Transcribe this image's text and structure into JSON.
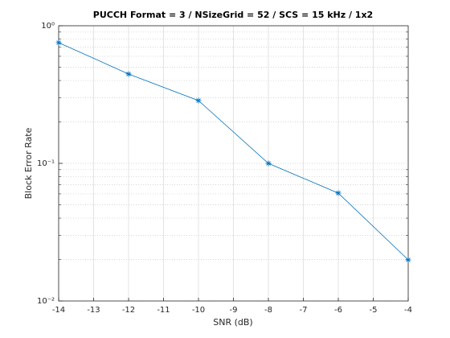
{
  "chart_data": {
    "type": "line",
    "title": "PUCCH Format = 3 / NSizeGrid = 52 / SCS = 15 kHz / 1x2",
    "x_label": "SNR (dB)",
    "y_label": "Block Error Rate",
    "x": [
      -14,
      -12,
      -10,
      -8,
      -6,
      -4
    ],
    "series": [
      {
        "color": "#0072bd",
        "values": [
          0.754,
          0.446,
          0.286,
          0.1,
          0.0608,
          0.0199
        ]
      }
    ],
    "xlim": [
      -14,
      -4
    ],
    "xticks": [
      -14,
      -13,
      -12,
      -11,
      -10,
      -9,
      -8,
      -7,
      -6,
      -5,
      -4
    ],
    "ylim": [
      0.01,
      1
    ],
    "log_y": true,
    "yticks": [
      {
        "value": 0.01,
        "label": "10⁻²"
      },
      {
        "value": 0.1,
        "label": "10⁻¹"
      },
      {
        "value": 1,
        "label": "10⁰"
      }
    ],
    "grid": true,
    "minor_grid": true,
    "marker": "asterisk"
  }
}
